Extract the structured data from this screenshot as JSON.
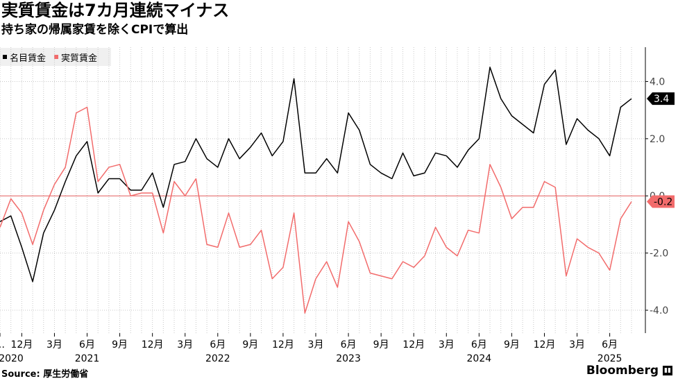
{
  "title": "実質賃金は7カ月連続マイナス",
  "subtitle": "持ち家の帰属家賃を除くCPIで算出",
  "source": "Source: 厚生労働省",
  "brand": "Bloomberg",
  "colors": {
    "nominal": "#000000",
    "real": "#f26b6b",
    "zero_line": "#e25c5c",
    "grid": "#c8c8c8",
    "badge_nominal_bg": "#000000",
    "badge_real_bg": "#f26b6b"
  },
  "chart_data": {
    "type": "line",
    "title": "実質賃金は7カ月連続マイナス",
    "subtitle": "持ち家の帰属家賃を除くCPIで算出",
    "x_start": "2020-10",
    "x_tick_labels": [
      {
        "index": 0,
        "month": "…",
        "year": "2020"
      },
      {
        "index": 2,
        "month": "12月",
        "year": ""
      },
      {
        "index": 5,
        "month": "3月",
        "year": "2021"
      },
      {
        "index": 8,
        "month": "6月",
        "year": ""
      },
      {
        "index": 11,
        "month": "9月",
        "year": ""
      },
      {
        "index": 14,
        "month": "12月",
        "year": ""
      },
      {
        "index": 17,
        "month": "3月",
        "year": "2022"
      },
      {
        "index": 20,
        "month": "6月",
        "year": ""
      },
      {
        "index": 23,
        "month": "9月",
        "year": ""
      },
      {
        "index": 26,
        "month": "12月",
        "year": ""
      },
      {
        "index": 29,
        "month": "3月",
        "year": "2023"
      },
      {
        "index": 32,
        "month": "6月",
        "year": ""
      },
      {
        "index": 35,
        "month": "9月",
        "year": ""
      },
      {
        "index": 38,
        "month": "12月",
        "year": ""
      },
      {
        "index": 41,
        "month": "3月",
        "year": "2024"
      },
      {
        "index": 44,
        "month": "6月",
        "year": ""
      },
      {
        "index": 47,
        "month": "9月",
        "year": ""
      },
      {
        "index": 50,
        "month": "12月",
        "year": ""
      },
      {
        "index": 53,
        "month": "3月",
        "year": "2025"
      },
      {
        "index": 56,
        "month": "6月",
        "year": ""
      }
    ],
    "year_labels": [
      {
        "index": 0,
        "label": "2020"
      },
      {
        "index": 8,
        "label": "2021"
      },
      {
        "index": 20,
        "label": "2022"
      },
      {
        "index": 32,
        "label": "2023"
      },
      {
        "index": 44,
        "label": "2024"
      },
      {
        "index": 56,
        "label": "2025"
      }
    ],
    "ylim": [
      -4.8,
      5.2
    ],
    "yticks": [
      4.0,
      2.0,
      0.0,
      -2.0,
      -4.0
    ],
    "ytick_labels": [
      "4.0",
      "2.0",
      "0.0",
      "-2.0",
      "-4.0"
    ],
    "grid": true,
    "legend_position": "top-left",
    "series": [
      {
        "name": "名目賃金",
        "color": "#000000",
        "values": [
          -0.9,
          -0.7,
          -1.8,
          -3.0,
          -1.3,
          -0.5,
          0.5,
          1.4,
          1.9,
          0.1,
          0.6,
          0.6,
          0.2,
          0.2,
          0.8,
          -0.4,
          1.1,
          1.2,
          2.0,
          1.3,
          1.0,
          2.0,
          1.3,
          1.7,
          2.2,
          1.4,
          1.9,
          4.1,
          0.8,
          0.8,
          1.3,
          0.8,
          2.9,
          2.3,
          1.1,
          0.8,
          0.6,
          1.5,
          0.7,
          0.8,
          1.5,
          1.4,
          1.0,
          1.6,
          2.0,
          4.5,
          3.4,
          2.8,
          2.5,
          2.2,
          3.9,
          4.4,
          1.8,
          2.7,
          2.3,
          2.0,
          1.4,
          3.1,
          3.4
        ],
        "end_label": "3.4"
      },
      {
        "name": "実質賃金",
        "color": "#f26b6b",
        "values": [
          -1.1,
          -0.1,
          -0.6,
          -1.7,
          -0.5,
          0.4,
          1.0,
          2.9,
          3.1,
          0.5,
          1.0,
          1.1,
          0.0,
          0.1,
          0.1,
          -1.3,
          0.5,
          0.0,
          0.6,
          -1.7,
          -1.8,
          -0.6,
          -1.8,
          -1.7,
          -1.2,
          -2.9,
          -2.5,
          -0.6,
          -4.1,
          -2.9,
          -2.3,
          -3.2,
          -0.9,
          -1.6,
          -2.7,
          -2.8,
          -2.9,
          -2.3,
          -2.5,
          -2.1,
          -1.1,
          -1.8,
          -2.1,
          -1.2,
          -1.3,
          1.1,
          0.3,
          -0.8,
          -0.4,
          -0.4,
          0.5,
          0.3,
          -2.8,
          -1.5,
          -1.8,
          -2.0,
          -2.6,
          -0.8,
          -0.2
        ],
        "end_label": "-0.2"
      }
    ]
  }
}
